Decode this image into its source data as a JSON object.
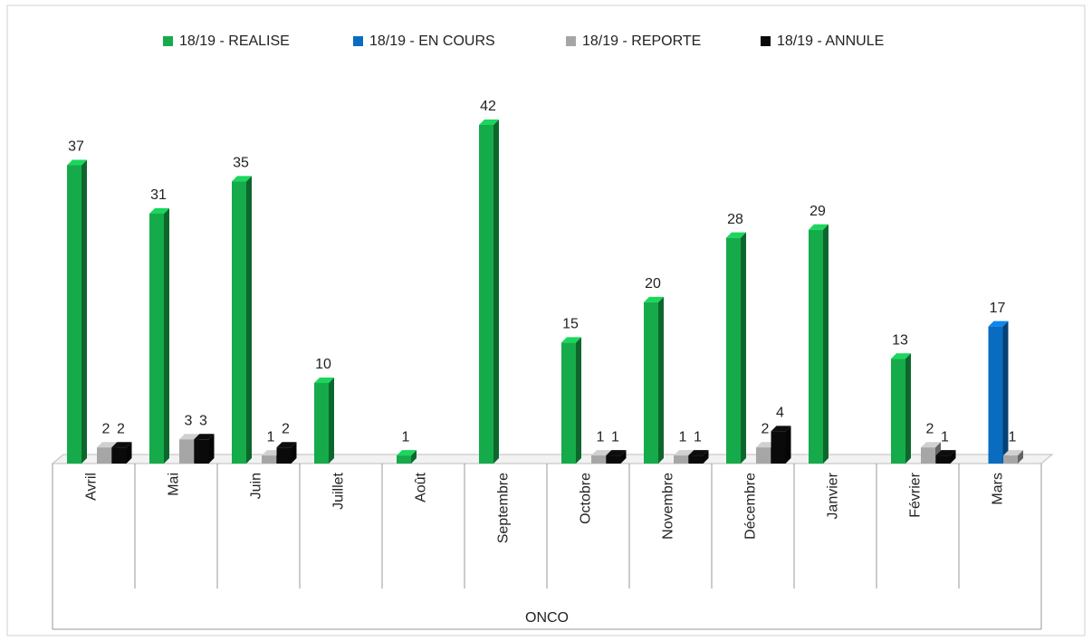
{
  "chart_data": {
    "type": "bar3d",
    "group_label": "ONCO",
    "categories": [
      "Avril",
      "Mai",
      "Juin",
      "Juillet",
      "Août",
      "Septembre",
      "Octobre",
      "Novembre",
      "Décembre",
      "Janvier",
      "Février",
      "Mars"
    ],
    "series": [
      {
        "name": "18/19 - REALISE",
        "color": "#15ab4a",
        "values": [
          37,
          31,
          35,
          10,
          1,
          42,
          15,
          20,
          28,
          29,
          13,
          null
        ]
      },
      {
        "name": "18/19 - EN COURS",
        "color": "#0a6cc0",
        "values": [
          null,
          null,
          null,
          null,
          null,
          null,
          null,
          null,
          null,
          null,
          null,
          17
        ]
      },
      {
        "name": "18/19 - REPORTE",
        "color": "#a6a6a6",
        "values": [
          2,
          3,
          1,
          null,
          null,
          null,
          1,
          1,
          2,
          null,
          2,
          1
        ]
      },
      {
        "name": "18/19 - ANNULE",
        "color": "#0a0a0a",
        "values": [
          2,
          3,
          2,
          null,
          null,
          null,
          1,
          1,
          4,
          null,
          1,
          null
        ]
      }
    ],
    "legend": "top"
  }
}
